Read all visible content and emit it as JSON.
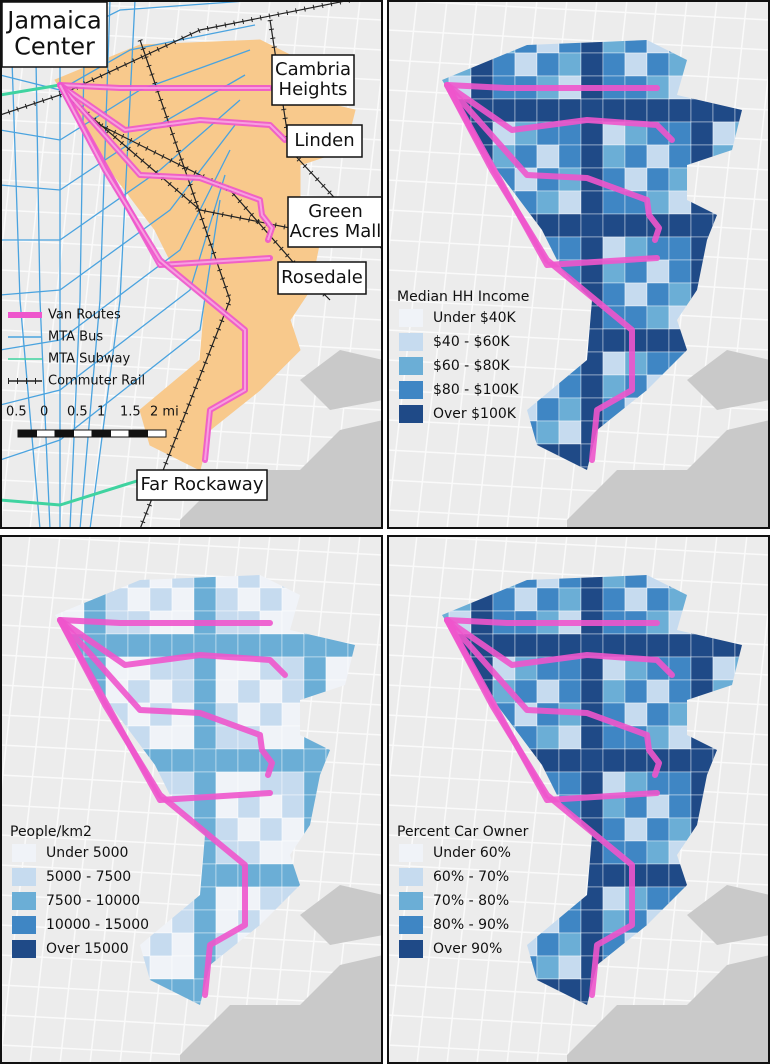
{
  "panels": [
    {
      "place_labels": [
        {
          "lines": [
            "Jamaica",
            "Center"
          ]
        },
        {
          "lines": [
            "Cambria",
            "Heights"
          ]
        },
        {
          "lines": [
            "Linden"
          ]
        },
        {
          "lines": [
            "Green",
            "Acres Mall"
          ]
        },
        {
          "lines": [
            "Rosedale"
          ]
        },
        {
          "lines": [
            "Far Rockaway"
          ]
        }
      ],
      "region_color": "#f8c98c",
      "legend_items": [
        {
          "label": "Van Routes",
          "color": "#ee55cc"
        },
        {
          "label": "MTA Bus",
          "color": "#4aa3df"
        },
        {
          "label": "MTA Subway",
          "color": "#3fd3a0"
        },
        {
          "label": "Commuter Rail",
          "color": "#222222"
        }
      ],
      "scale_labels": [
        "0.5",
        "0",
        "0.5",
        "1",
        "1.5",
        "2 mi"
      ]
    },
    {
      "legend_title": "Median HH Income",
      "legend_items": [
        {
          "label": "Under $40K",
          "color": "#f0f3f8"
        },
        {
          "label": "$40 - $60K",
          "color": "#c6dbef"
        },
        {
          "label": "$60 - $80K",
          "color": "#6baed6"
        },
        {
          "label": "$80 - $100K",
          "color": "#3f86c4"
        },
        {
          "label": "Over $100K",
          "color": "#1f4a87"
        }
      ]
    },
    {
      "legend_title": "People/km2",
      "legend_items": [
        {
          "label": "Under 5000",
          "color": "#f0f3f8"
        },
        {
          "label": "5000 - 7500",
          "color": "#c6dbef"
        },
        {
          "label": "7500 - 10000",
          "color": "#6baed6"
        },
        {
          "label": "10000 - 15000",
          "color": "#3f86c4"
        },
        {
          "label": "Over 15000",
          "color": "#1f4a87"
        }
      ]
    },
    {
      "legend_title": "Percent Car Owner",
      "legend_items": [
        {
          "label": "Under 60%",
          "color": "#f0f3f8"
        },
        {
          "label": "60% - 70%",
          "color": "#c6dbef"
        },
        {
          "label": "70% - 80%",
          "color": "#6baed6"
        },
        {
          "label": "80% - 90%",
          "color": "#3f86c4"
        },
        {
          "label": "Over 90%",
          "color": "#1f4a87"
        }
      ]
    }
  ]
}
